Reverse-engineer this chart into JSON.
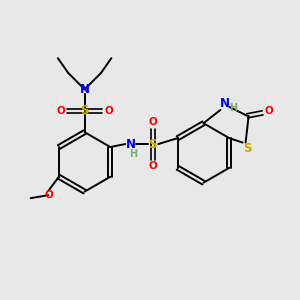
{
  "background_color": "#e8e8e8",
  "bond_color": "#000000",
  "colors": {
    "N": "#0000ff",
    "O": "#ff0000",
    "S": "#ccaa00",
    "H": "#7aaa7a",
    "C": "#000000"
  }
}
